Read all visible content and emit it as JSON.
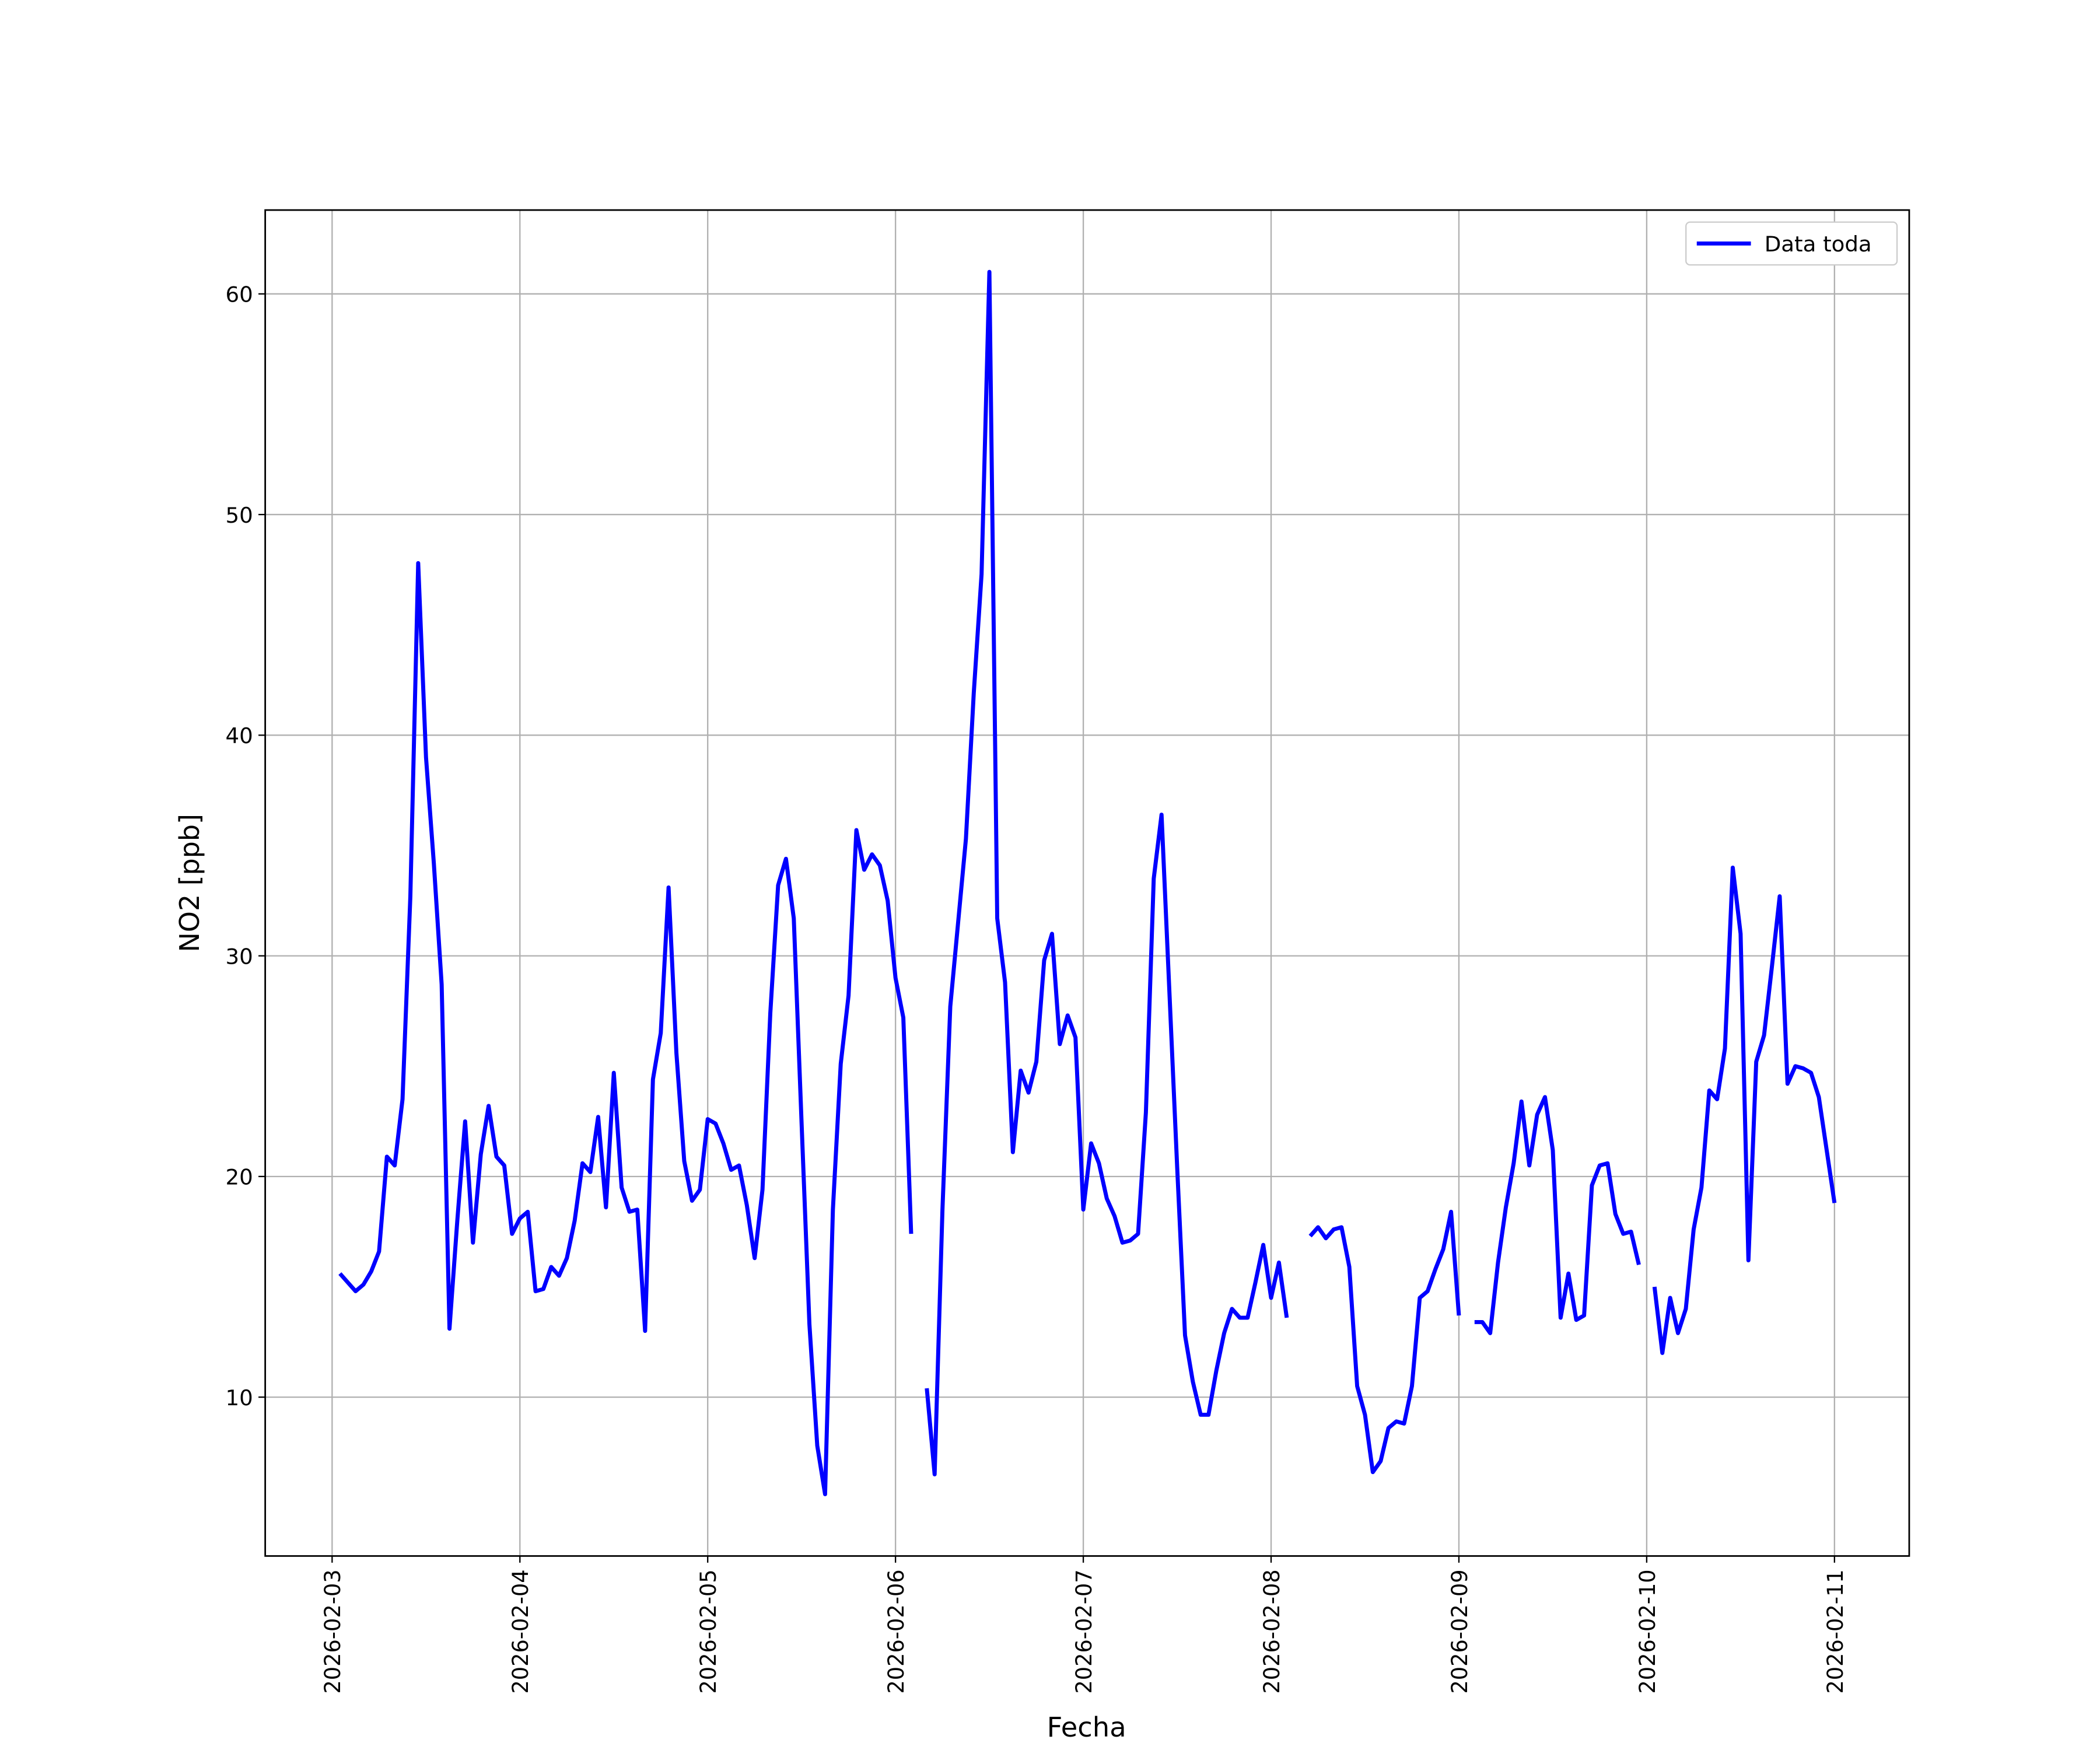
{
  "chart_data": {
    "type": "line",
    "xlabel": "Fecha",
    "ylabel": "NO2 [ppb]",
    "x": [
      "2026-02-03 01:00",
      "2026-02-03 02:00",
      "2026-02-03 03:00",
      "2026-02-03 04:00",
      "2026-02-03 05:00",
      "2026-02-03 06:00",
      "2026-02-03 07:00",
      "2026-02-03 08:00",
      "2026-02-03 09:00",
      "2026-02-03 10:00",
      "2026-02-03 11:00",
      "2026-02-03 12:00",
      "2026-02-03 13:00",
      "2026-02-03 14:00",
      "2026-02-03 15:00",
      "2026-02-03 16:00",
      "2026-02-03 17:00",
      "2026-02-03 18:00",
      "2026-02-03 19:00",
      "2026-02-03 20:00",
      "2026-02-03 21:00",
      "2026-02-03 22:00",
      "2026-02-03 23:00",
      "2026-02-04 00:00",
      "2026-02-04 01:00",
      "2026-02-04 02:00",
      "2026-02-04 03:00",
      "2026-02-04 04:00",
      "2026-02-04 05:00",
      "2026-02-04 06:00",
      "2026-02-04 07:00",
      "2026-02-04 08:00",
      "2026-02-04 09:00",
      "2026-02-04 10:00",
      "2026-02-04 11:00",
      "2026-02-04 12:00",
      "2026-02-04 13:00",
      "2026-02-04 14:00",
      "2026-02-04 15:00",
      "2026-02-04 16:00",
      "2026-02-04 17:00",
      "2026-02-04 18:00",
      "2026-02-04 19:00",
      "2026-02-04 20:00",
      "2026-02-04 21:00",
      "2026-02-04 22:00",
      "2026-02-04 23:00",
      "2026-02-05 00:00",
      "2026-02-05 01:00",
      "2026-02-05 02:00",
      "2026-02-05 03:00",
      "2026-02-05 04:00",
      "2026-02-05 05:00",
      "2026-02-05 06:00",
      "2026-02-05 07:00",
      "2026-02-05 08:00",
      "2026-02-05 09:00",
      "2026-02-05 10:00",
      "2026-02-05 11:00",
      "2026-02-05 12:00",
      "2026-02-05 13:00",
      "2026-02-05 14:00",
      "2026-02-05 15:00",
      "2026-02-05 16:00",
      "2026-02-05 17:00",
      "2026-02-05 18:00",
      "2026-02-05 19:00",
      "2026-02-05 20:00",
      "2026-02-05 21:00",
      "2026-02-05 22:00",
      "2026-02-05 23:00",
      "2026-02-06 00:00",
      "2026-02-06 01:00",
      "2026-02-06 02:00",
      "2026-02-06 03:00",
      "2026-02-06 04:00",
      "2026-02-06 05:00",
      "2026-02-06 06:00",
      "2026-02-06 07:00",
      "2026-02-06 08:00",
      "2026-02-06 09:00",
      "2026-02-06 10:00",
      "2026-02-06 11:00",
      "2026-02-06 12:00",
      "2026-02-06 13:00",
      "2026-02-06 14:00",
      "2026-02-06 15:00",
      "2026-02-06 16:00",
      "2026-02-06 17:00",
      "2026-02-06 18:00",
      "2026-02-06 19:00",
      "2026-02-06 20:00",
      "2026-02-06 21:00",
      "2026-02-06 22:00",
      "2026-02-06 23:00",
      "2026-02-07 00:00",
      "2026-02-07 01:00",
      "2026-02-07 02:00",
      "2026-02-07 03:00",
      "2026-02-07 04:00",
      "2026-02-07 05:00",
      "2026-02-07 06:00",
      "2026-02-07 07:00",
      "2026-02-07 08:00",
      "2026-02-07 09:00",
      "2026-02-07 10:00",
      "2026-02-07 11:00",
      "2026-02-07 12:00",
      "2026-02-07 13:00",
      "2026-02-07 14:00",
      "2026-02-07 15:00",
      "2026-02-07 16:00",
      "2026-02-07 17:00",
      "2026-02-07 18:00",
      "2026-02-07 19:00",
      "2026-02-07 20:00",
      "2026-02-07 21:00",
      "2026-02-07 22:00",
      "2026-02-07 23:00",
      "2026-02-08 00:00",
      "2026-02-08 01:00",
      "2026-02-08 02:00",
      "2026-02-08 03:00",
      "2026-02-08 04:00",
      "2026-02-08 05:00",
      "2026-02-08 06:00",
      "2026-02-08 07:00",
      "2026-02-08 08:00",
      "2026-02-08 09:00",
      "2026-02-08 10:00",
      "2026-02-08 11:00",
      "2026-02-08 12:00",
      "2026-02-08 13:00",
      "2026-02-08 14:00",
      "2026-02-08 15:00",
      "2026-02-08 16:00",
      "2026-02-08 17:00",
      "2026-02-08 18:00",
      "2026-02-08 19:00",
      "2026-02-08 20:00",
      "2026-02-08 21:00",
      "2026-02-08 22:00",
      "2026-02-08 23:00",
      "2026-02-09 00:00",
      "2026-02-09 01:00",
      "2026-02-09 02:00",
      "2026-02-09 03:00",
      "2026-02-09 04:00",
      "2026-02-09 05:00",
      "2026-02-09 06:00",
      "2026-02-09 07:00",
      "2026-02-09 08:00",
      "2026-02-09 09:00",
      "2026-02-09 10:00",
      "2026-02-09 11:00",
      "2026-02-09 12:00",
      "2026-02-09 13:00",
      "2026-02-09 14:00",
      "2026-02-09 15:00",
      "2026-02-09 16:00",
      "2026-02-09 17:00",
      "2026-02-09 18:00",
      "2026-02-09 19:00",
      "2026-02-09 20:00",
      "2026-02-09 21:00",
      "2026-02-09 22:00",
      "2026-02-09 23:00",
      "2026-02-10 00:00",
      "2026-02-10 01:00",
      "2026-02-10 02:00",
      "2026-02-10 03:00",
      "2026-02-10 04:00",
      "2026-02-10 05:00",
      "2026-02-10 06:00",
      "2026-02-10 07:00",
      "2026-02-10 08:00",
      "2026-02-10 09:00",
      "2026-02-10 10:00",
      "2026-02-10 11:00",
      "2026-02-10 12:00",
      "2026-02-10 13:00",
      "2026-02-10 14:00",
      "2026-02-10 15:00",
      "2026-02-10 16:00",
      "2026-02-10 17:00",
      "2026-02-10 18:00",
      "2026-02-10 19:00",
      "2026-02-10 20:00",
      "2026-02-10 21:00",
      "2026-02-10 22:00",
      "2026-02-10 23:00",
      "2026-02-11 00:00"
    ],
    "series": [
      {
        "name": "Data toda",
        "color": "#0000ff",
        "values": [
          15.6,
          15.2,
          14.8,
          15.1,
          15.7,
          16.6,
          20.9,
          20.5,
          23.5,
          32.7,
          47.8,
          39.0,
          34.2,
          28.7,
          13.1,
          18.0,
          22.5,
          17.0,
          21.0,
          23.2,
          20.9,
          20.5,
          17.4,
          18.1,
          18.4,
          14.8,
          14.9,
          15.9,
          15.5,
          16.3,
          18.0,
          20.6,
          20.2,
          22.7,
          18.6,
          24.7,
          19.5,
          18.4,
          18.5,
          13.0,
          24.4,
          26.5,
          33.1,
          25.6,
          20.7,
          18.9,
          19.4,
          22.6,
          22.4,
          21.5,
          20.3,
          20.5,
          18.7,
          16.3,
          19.4,
          27.4,
          33.2,
          34.4,
          31.7,
          22.4,
          13.3,
          7.8,
          5.6,
          18.5,
          25.1,
          28.2,
          35.7,
          33.9,
          34.6,
          34.1,
          32.5,
          29.0,
          27.2,
          17.4,
          null,
          10.4,
          6.5,
          18.5,
          27.7,
          31.5,
          35.3,
          41.9,
          47.3,
          61.0,
          31.7,
          28.8,
          21.1,
          24.8,
          23.8,
          25.2,
          29.8,
          31.0,
          26.0,
          27.3,
          26.3,
          18.5,
          21.5,
          20.6,
          19.0,
          18.2,
          17.0,
          17.1,
          17.4,
          22.9,
          33.5,
          36.4,
          28.4,
          20.4,
          12.8,
          10.7,
          9.2,
          9.2,
          11.2,
          12.9,
          14.0,
          13.6,
          13.6,
          15.2,
          16.9,
          14.5,
          16.1,
          13.6,
          null,
          null,
          17.3,
          17.7,
          17.2,
          17.6,
          17.7,
          15.9,
          10.5,
          9.2,
          6.6,
          7.1,
          8.6,
          8.9,
          8.8,
          10.5,
          14.5,
          14.8,
          15.8,
          16.7,
          18.4,
          13.7,
          null,
          13.4,
          13.4,
          12.9,
          16.1,
          18.6,
          20.6,
          23.4,
          20.5,
          22.8,
          23.6,
          21.2,
          13.6,
          15.6,
          13.5,
          13.7,
          19.6,
          20.5,
          20.6,
          18.3,
          17.4,
          17.5,
          16.0,
          null,
          15.0,
          12.0,
          14.5,
          12.9,
          14.0,
          17.6,
          19.5,
          23.9,
          23.5,
          25.8,
          34.0,
          31.0,
          16.2,
          25.2,
          26.4,
          29.5,
          32.7,
          24.2,
          25.0,
          24.9,
          24.7,
          23.6,
          21.2,
          18.8
        ]
      }
    ],
    "xlim": [
      "2026-02-02 15:27",
      "2026-02-11 09:33"
    ],
    "xticks": [
      "2026-02-03",
      "2026-02-04",
      "2026-02-05",
      "2026-02-06",
      "2026-02-07",
      "2026-02-08",
      "2026-02-09",
      "2026-02-10",
      "2026-02-11"
    ],
    "ylim": [
      2.8,
      63.8
    ],
    "yticks": [
      10,
      20,
      30,
      40,
      50,
      60
    ],
    "grid": true,
    "legend": "upper right"
  }
}
